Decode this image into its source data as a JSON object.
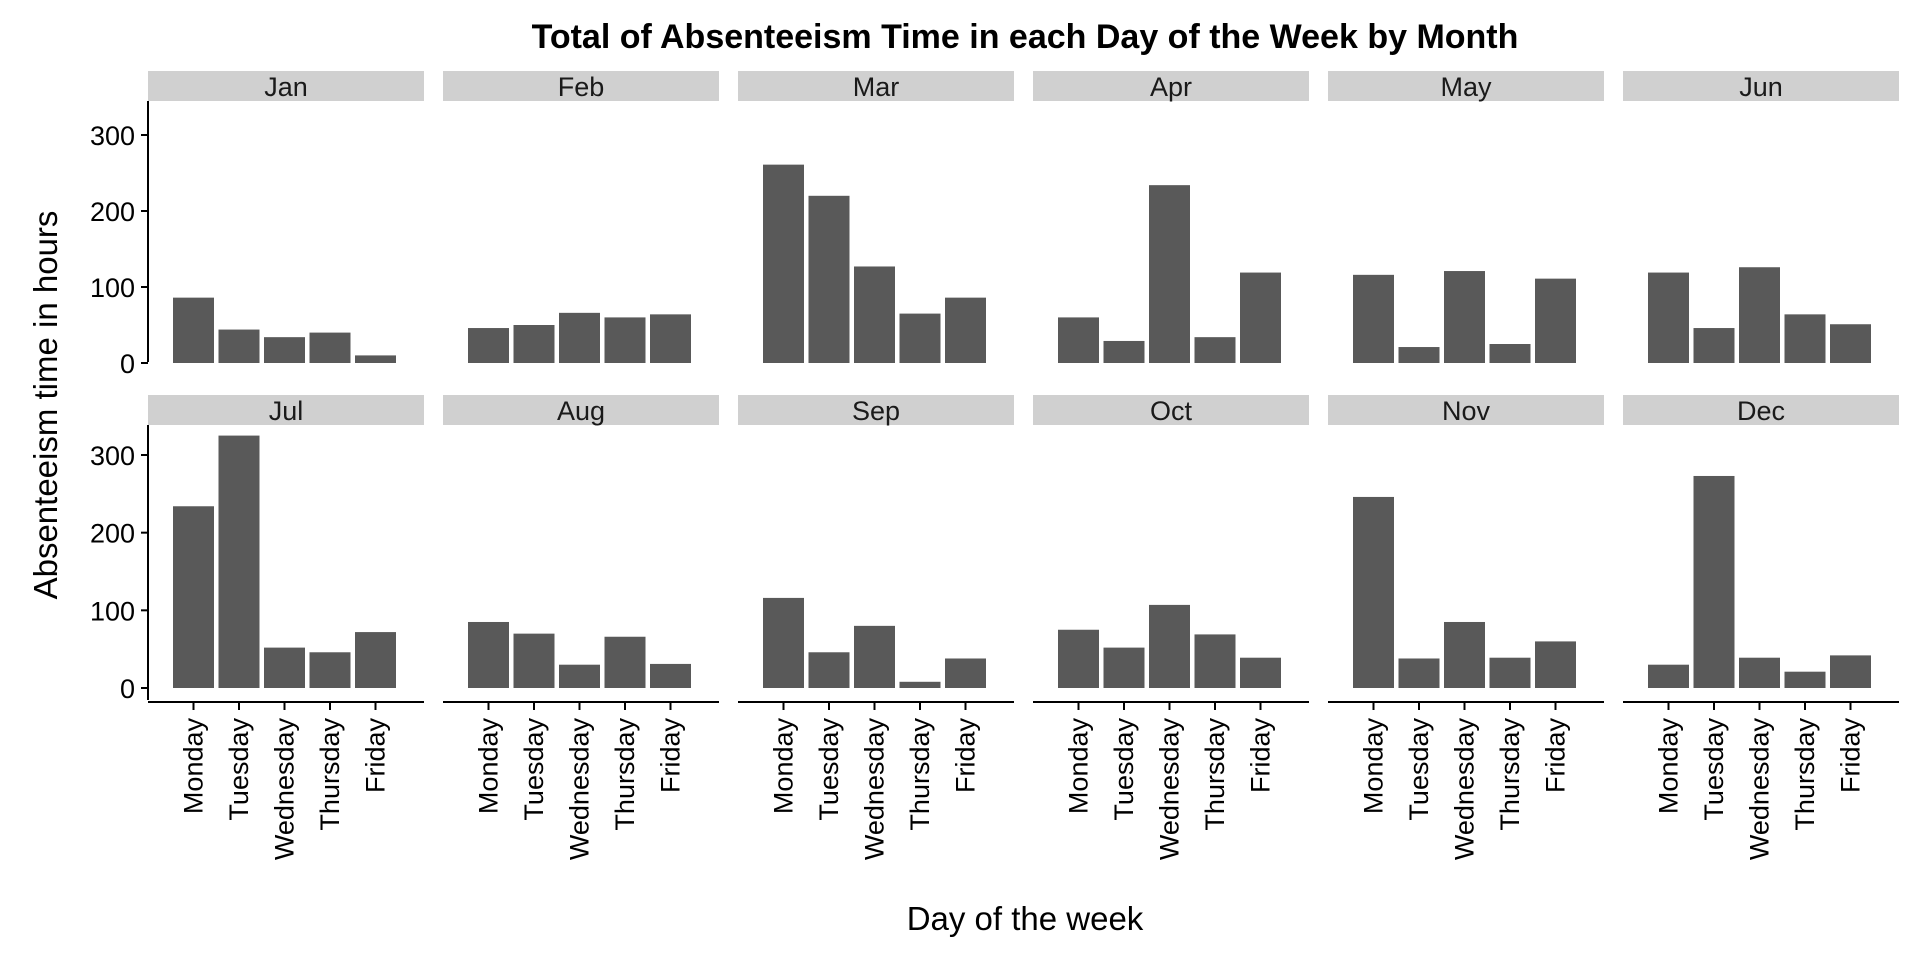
{
  "chart_data": {
    "type": "bar",
    "title": "Total of Absenteeism Time in each Day of the Week by Month",
    "xlabel": "Day of the week",
    "ylabel": "Absenteeism time in hours",
    "categories": [
      "Monday",
      "Tuesday",
      "Wednesday",
      "Thursday",
      "Friday"
    ],
    "ylim": [
      0,
      340
    ],
    "yticks": [
      0,
      100,
      200,
      300
    ],
    "grid": false,
    "bar_color": "#595959",
    "strip_color": "#d0d0d0",
    "panels": [
      {
        "name": "Jan",
        "values": [
          86,
          44,
          34,
          40,
          10
        ]
      },
      {
        "name": "Feb",
        "values": [
          46,
          50,
          66,
          60,
          64
        ]
      },
      {
        "name": "Mar",
        "values": [
          261,
          220,
          127,
          65,
          86
        ]
      },
      {
        "name": "Apr",
        "values": [
          60,
          29,
          234,
          34,
          119
        ]
      },
      {
        "name": "May",
        "values": [
          116,
          21,
          121,
          25,
          111
        ]
      },
      {
        "name": "Jun",
        "values": [
          119,
          46,
          126,
          64,
          51
        ]
      },
      {
        "name": "Jul",
        "values": [
          234,
          325,
          52,
          46,
          72
        ]
      },
      {
        "name": "Aug",
        "values": [
          85,
          70,
          30,
          66,
          31
        ]
      },
      {
        "name": "Sep",
        "values": [
          116,
          46,
          80,
          8,
          38
        ]
      },
      {
        "name": "Oct",
        "values": [
          75,
          52,
          107,
          69,
          39
        ]
      },
      {
        "name": "Nov",
        "values": [
          246,
          38,
          85,
          39,
          60
        ]
      },
      {
        "name": "Dec",
        "values": [
          30,
          273,
          39,
          21,
          42
        ]
      }
    ]
  }
}
